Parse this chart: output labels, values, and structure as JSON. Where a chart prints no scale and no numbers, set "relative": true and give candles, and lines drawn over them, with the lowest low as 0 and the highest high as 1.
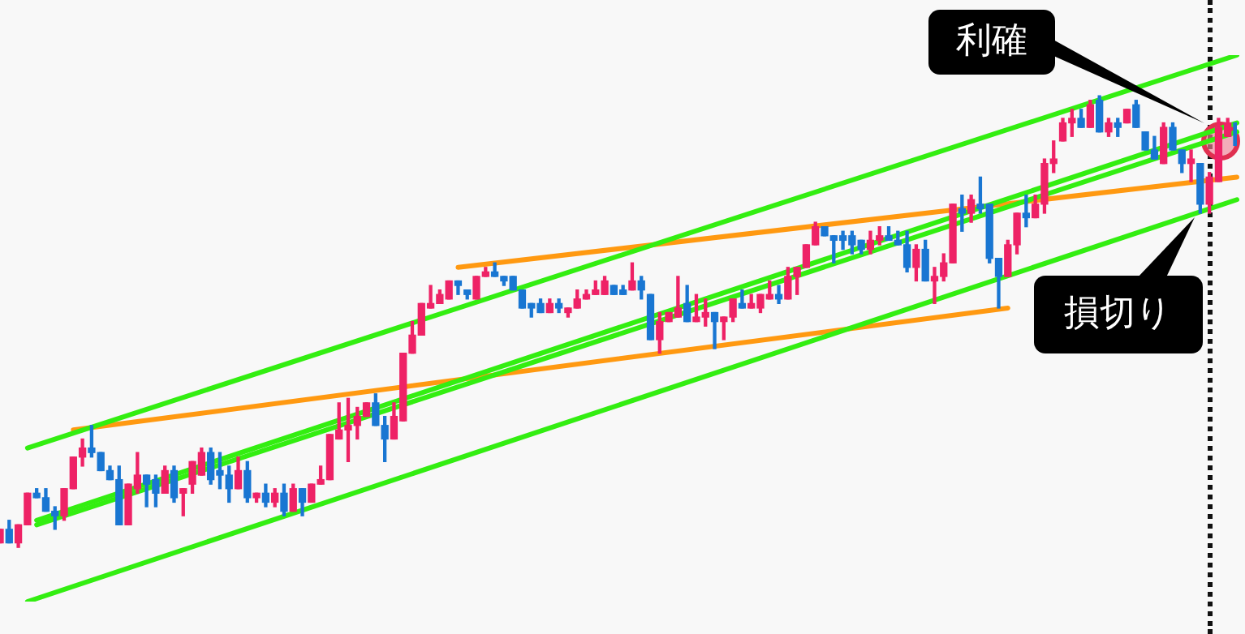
{
  "chart_data": {
    "type": "candlestick",
    "relative": true,
    "categories": [
      null,
      null,
      null,
      null,
      null,
      null,
      null,
      null,
      null,
      null,
      null,
      null,
      null,
      null,
      null,
      null,
      null,
      null,
      null,
      null,
      null,
      null,
      null,
      null,
      null,
      null,
      null,
      null,
      null,
      null,
      null,
      null,
      null,
      null,
      null,
      null,
      null,
      null,
      null,
      null,
      null,
      null,
      null,
      null,
      null,
      null,
      null,
      null,
      null,
      null,
      null,
      null,
      null,
      null,
      null,
      null,
      null,
      null,
      null,
      null,
      null,
      null,
      null,
      null,
      null,
      null,
      null,
      null,
      null,
      null,
      null,
      null,
      null,
      null,
      null,
      null,
      null,
      null,
      null,
      null,
      null,
      null,
      null,
      null,
      null,
      null,
      null,
      null,
      null,
      null,
      null,
      null,
      null,
      null,
      null,
      null,
      null,
      null,
      null,
      null,
      null,
      null,
      null,
      null,
      null,
      null,
      null,
      null,
      null,
      null,
      null,
      null,
      null,
      null,
      null,
      null,
      null,
      null,
      null,
      null,
      null,
      null,
      null,
      null,
      null,
      null,
      null,
      null,
      null,
      null,
      null,
      null,
      null,
      null,
      null,
      null
    ],
    "series": [
      {
        "type": "line",
        "color": "#33ee11",
        "values": [
          null,
          null,
          null,
          0.22,
          null,
          null,
          null,
          null,
          null,
          null,
          null,
          null,
          null,
          null,
          null,
          null,
          null,
          null,
          null,
          null,
          null,
          null,
          null,
          null,
          null,
          null,
          null,
          null,
          null,
          null,
          null,
          null,
          null,
          null,
          null,
          null,
          null,
          null,
          null,
          null,
          null,
          null,
          null,
          null,
          null,
          null,
          null,
          null,
          null,
          null,
          null,
          null,
          null,
          null,
          null,
          null,
          null,
          null,
          null,
          null,
          null,
          null,
          null,
          null,
          null,
          null,
          null,
          null,
          null,
          null,
          null,
          null,
          null,
          null,
          null,
          null,
          null,
          null,
          null,
          null,
          null,
          null,
          null,
          null,
          null,
          null,
          null,
          null,
          null,
          null,
          null,
          null,
          null,
          null,
          null,
          null,
          null,
          null,
          null,
          null,
          null,
          null,
          null,
          null,
          null,
          null,
          null,
          null,
          null,
          null,
          null,
          null,
          null,
          null,
          null,
          null,
          null,
          null,
          null,
          null,
          null,
          null,
          null,
          null,
          null,
          null,
          null,
          null,
          null,
          null,
          null,
          null,
          null,
          null,
          null,
          1.09
        ]
      },
      {
        "type": "line",
        "color": "#33ee11",
        "values": [
          null,
          null,
          null,
          null,
          0.06,
          null,
          null,
          null,
          null,
          null,
          null,
          null,
          null,
          null,
          null,
          null,
          null,
          null,
          null,
          null,
          null,
          null,
          null,
          null,
          null,
          null,
          null,
          null,
          null,
          null,
          null,
          null,
          null,
          null,
          null,
          null,
          null,
          null,
          null,
          null,
          null,
          null,
          null,
          null,
          null,
          null,
          null,
          null,
          null,
          null,
          null,
          null,
          null,
          null,
          null,
          null,
          null,
          null,
          null,
          null,
          null,
          null,
          null,
          null,
          null,
          null,
          null,
          null,
          null,
          null,
          null,
          null,
          null,
          null,
          null,
          null,
          null,
          null,
          null,
          null,
          null,
          null,
          null,
          null,
          null,
          null,
          null,
          null,
          null,
          null,
          null,
          null,
          null,
          null,
          null,
          null,
          null,
          null,
          null,
          null,
          null,
          null,
          null,
          null,
          null,
          null,
          null,
          null,
          null,
          null,
          null,
          null,
          null,
          null,
          null,
          null,
          null,
          null,
          null,
          null,
          null,
          null,
          null,
          null,
          null,
          null,
          null,
          null,
          null,
          null,
          null,
          null,
          null,
          null,
          null,
          0.94
        ]
      },
      {
        "type": "line",
        "color": "#33ee11",
        "values": [
          null,
          null,
          null,
          null,
          0.05,
          null,
          null,
          null,
          null,
          null,
          null,
          null,
          null,
          null,
          null,
          null,
          null,
          null,
          null,
          null,
          null,
          null,
          null,
          null,
          null,
          null,
          null,
          null,
          null,
          null,
          null,
          null,
          null,
          null,
          null,
          null,
          null,
          null,
          null,
          null,
          null,
          null,
          null,
          null,
          null,
          null,
          null,
          null,
          null,
          null,
          null,
          null,
          null,
          null,
          null,
          null,
          null,
          null,
          null,
          null,
          null,
          null,
          null,
          null,
          null,
          null,
          null,
          null,
          null,
          null,
          null,
          null,
          null,
          null,
          null,
          null,
          null,
          null,
          null,
          null,
          null,
          null,
          null,
          null,
          null,
          null,
          null,
          null,
          null,
          null,
          null,
          null,
          null,
          null,
          null,
          null,
          null,
          null,
          null,
          null,
          null,
          null,
          null,
          null,
          null,
          null,
          null,
          null,
          null,
          null,
          null,
          null,
          null,
          null,
          null,
          null,
          null,
          null,
          null,
          null,
          null,
          null,
          null,
          null,
          null,
          null,
          null,
          null,
          null,
          null,
          null,
          null,
          null,
          null,
          null,
          0.92
        ]
      },
      {
        "type": "line",
        "color": "#33ee11",
        "values": [
          null,
          null,
          null,
          -0.12,
          null,
          null,
          null,
          null,
          null,
          null,
          null,
          null,
          null,
          null,
          null,
          null,
          null,
          null,
          null,
          null,
          null,
          null,
          null,
          null,
          null,
          null,
          null,
          null,
          null,
          null,
          null,
          null,
          null,
          null,
          null,
          null,
          null,
          null,
          null,
          null,
          null,
          null,
          null,
          null,
          null,
          null,
          null,
          null,
          null,
          null,
          null,
          null,
          null,
          null,
          null,
          null,
          null,
          null,
          null,
          null,
          null,
          null,
          null,
          null,
          null,
          null,
          null,
          null,
          null,
          null,
          null,
          null,
          null,
          null,
          null,
          null,
          null,
          null,
          null,
          null,
          null,
          null,
          null,
          null,
          null,
          null,
          null,
          null,
          null,
          null,
          null,
          null,
          null,
          null,
          null,
          null,
          null,
          null,
          null,
          null,
          null,
          null,
          null,
          null,
          null,
          null,
          null,
          null,
          null,
          null,
          null,
          null,
          null,
          null,
          null,
          null,
          null,
          null,
          null,
          null,
          null,
          null,
          null,
          null,
          null,
          null,
          null,
          null,
          null,
          null,
          null,
          null,
          null,
          null,
          null,
          0.77
        ]
      },
      {
        "type": "line",
        "color": "#ff9911",
        "values": [
          null,
          null,
          null,
          null,
          null,
          null,
          null,
          null,
          0.26,
          null,
          null,
          null,
          null,
          null,
          null,
          null,
          null,
          null,
          null,
          null,
          null,
          null,
          null,
          null,
          null,
          null,
          null,
          null,
          null,
          null,
          null,
          null,
          null,
          null,
          null,
          null,
          null,
          null,
          null,
          null,
          null,
          null,
          null,
          null,
          null,
          null,
          null,
          null,
          null,
          null,
          null,
          null,
          null,
          null,
          null,
          null,
          null,
          null,
          null,
          null,
          null,
          null,
          null,
          null,
          null,
          null,
          null,
          null,
          null,
          null,
          null,
          null,
          null,
          null,
          null,
          null,
          null,
          null,
          null,
          null,
          null,
          null,
          null,
          null,
          null,
          null,
          null,
          null,
          null,
          null,
          null,
          null,
          null,
          null,
          null,
          null,
          null,
          null,
          null,
          null,
          null,
          null,
          null,
          null,
          null,
          null,
          null,
          null,
          null,
          null,
          0.53,
          null,
          null,
          null,
          null,
          null,
          null,
          null,
          null,
          null,
          null,
          null,
          null,
          null,
          null,
          null,
          null,
          null,
          null,
          null,
          null,
          null,
          null,
          null,
          null,
          null
        ]
      },
      {
        "type": "line",
        "color": "#ff9911",
        "values": [
          null,
          null,
          null,
          null,
          null,
          null,
          null,
          null,
          null,
          null,
          null,
          null,
          null,
          null,
          null,
          null,
          null,
          null,
          null,
          null,
          null,
          null,
          null,
          null,
          null,
          null,
          null,
          null,
          null,
          null,
          null,
          null,
          null,
          null,
          null,
          null,
          null,
          null,
          null,
          null,
          null,
          null,
          null,
          null,
          null,
          null,
          null,
          null,
          null,
          null,
          0.62,
          null,
          null,
          null,
          null,
          null,
          null,
          null,
          null,
          null,
          null,
          null,
          null,
          null,
          null,
          null,
          null,
          null,
          null,
          null,
          null,
          null,
          null,
          null,
          null,
          null,
          null,
          null,
          null,
          null,
          null,
          null,
          null,
          null,
          null,
          null,
          null,
          null,
          null,
          null,
          null,
          null,
          null,
          null,
          null,
          null,
          null,
          null,
          null,
          null,
          null,
          null,
          null,
          null,
          null,
          null,
          null,
          null,
          null,
          null,
          null,
          null,
          null,
          null,
          null,
          null,
          null,
          null,
          null,
          null,
          null,
          null,
          null,
          null,
          null,
          null,
          null,
          null,
          null,
          null,
          null,
          null,
          null,
          null,
          null,
          0.82
        ]
      },
      {
        "type": "candlestick",
        "ohlc": [
          [
            0.01,
            0.04,
            0.01,
            0.04
          ],
          [
            0.04,
            0.06,
            0.01,
            0.01
          ],
          [
            0.01,
            0.05,
            0,
            0.05
          ],
          [
            0.05,
            0.12,
            0.05,
            0.12
          ],
          [
            0.12,
            0.13,
            0.11,
            0.11
          ],
          [
            0.11,
            0.13,
            0.08,
            0.08
          ],
          [
            0.08,
            0.09,
            0.04,
            0.07
          ],
          [
            0.07,
            0.13,
            0.06,
            0.13
          ],
          [
            0.13,
            0.2,
            0.13,
            0.2
          ],
          [
            0.2,
            0.24,
            0.18,
            0.22
          ],
          [
            0.22,
            0.27,
            0.2,
            0.21
          ],
          [
            0.21,
            0.21,
            0.17,
            0.17
          ],
          [
            0.17,
            0.18,
            0.15,
            0.15
          ],
          [
            0.15,
            0.18,
            0.05,
            0.05
          ],
          [
            0.05,
            0.14,
            0.05,
            0.14
          ],
          [
            0.13,
            0.21,
            0.12,
            0.16
          ],
          [
            0.16,
            0.16,
            0.09,
            0.14
          ],
          [
            0.15,
            0.16,
            0.09,
            0.12
          ],
          [
            0.12,
            0.18,
            0.12,
            0.17
          ],
          [
            0.17,
            0.18,
            0.1,
            0.11
          ],
          [
            0.12,
            0.13,
            0.07,
            0.13
          ],
          [
            0.14,
            0.19,
            0.12,
            0.19
          ],
          [
            0.16,
            0.22,
            0.16,
            0.21
          ],
          [
            0.21,
            0.22,
            0.14,
            0.15
          ],
          [
            0.17,
            0.21,
            0.13,
            0.16
          ],
          [
            0.16,
            0.18,
            0.1,
            0.13
          ],
          [
            0.13,
            0.2,
            0.13,
            0.17
          ],
          [
            0.17,
            0.19,
            0.1,
            0.11
          ],
          [
            0.11,
            0.12,
            0.1,
            0.12
          ],
          [
            0.12,
            0.14,
            0.09,
            0.1
          ],
          [
            0.1,
            0.13,
            0.09,
            0.12
          ],
          [
            0.12,
            0.14,
            0.07,
            0.08
          ],
          [
            0.08,
            0.14,
            0.08,
            0.13
          ],
          [
            0.13,
            0.13,
            0.07,
            0.1
          ],
          [
            0.1,
            0.14,
            0.1,
            0.14
          ],
          [
            0.14,
            0.18,
            0.14,
            0.15
          ],
          [
            0.15,
            0.25,
            0.15,
            0.25
          ],
          [
            0.24,
            0.32,
            0.24,
            0.26
          ],
          [
            0.26,
            0.33,
            0.19,
            0.27
          ],
          [
            0.27,
            0.31,
            0.24,
            0.29
          ],
          [
            0.29,
            0.32,
            0.29,
            0.32
          ],
          [
            0.32,
            0.34,
            0.27,
            0.27
          ],
          [
            0.27,
            0.29,
            0.19,
            0.24
          ],
          [
            0.24,
            0.32,
            0.24,
            0.29
          ],
          [
            0.28,
            0.43,
            0.28,
            0.43
          ],
          [
            0.43,
            0.5,
            0.43,
            0.47
          ],
          [
            0.47,
            0.54,
            0.47,
            0.54
          ],
          [
            0.53,
            0.58,
            0.53,
            0.54
          ],
          [
            0.54,
            0.57,
            0.54,
            0.56
          ],
          [
            0.55,
            0.59,
            0.55,
            0.59
          ],
          [
            0.59,
            0.59,
            0.56,
            0.58
          ],
          [
            0.57,
            0.57,
            0.55,
            0.56
          ],
          [
            0.55,
            0.6,
            0.55,
            0.6
          ],
          [
            0.6,
            0.62,
            0.6,
            0.61
          ],
          [
            0.61,
            0.63,
            0.6,
            0.6
          ],
          [
            0.6,
            0.6,
            0.58,
            0.59
          ],
          [
            0.6,
            0.6,
            0.57,
            0.57
          ],
          [
            0.57,
            0.57,
            0.53,
            0.53
          ],
          [
            0.54,
            0.54,
            0.51,
            0.53
          ],
          [
            0.54,
            0.55,
            0.52,
            0.52
          ],
          [
            0.52,
            0.55,
            0.52,
            0.54
          ],
          [
            0.54,
            0.55,
            0.52,
            0.53
          ],
          [
            0.52,
            0.53,
            0.51,
            0.53
          ],
          [
            0.53,
            0.57,
            0.53,
            0.55
          ],
          [
            0.55,
            0.57,
            0.55,
            0.56
          ],
          [
            0.56,
            0.59,
            0.56,
            0.57
          ],
          [
            0.56,
            0.6,
            0.56,
            0.59
          ],
          [
            0.58,
            0.58,
            0.56,
            0.56
          ],
          [
            0.57,
            0.58,
            0.56,
            0.56
          ],
          [
            0.57,
            0.63,
            0.57,
            0.59
          ],
          [
            0.59,
            0.6,
            0.55,
            0.57
          ],
          [
            0.56,
            0.56,
            0.46,
            0.46
          ],
          [
            0.46,
            0.52,
            0.43,
            0.5
          ],
          [
            0.5,
            0.52,
            0.5,
            0.52
          ],
          [
            0.51,
            0.6,
            0.51,
            0.53
          ],
          [
            0.54,
            0.58,
            0.5,
            0.5
          ],
          [
            0.5,
            0.56,
            0.5,
            0.51
          ],
          [
            0.51,
            0.55,
            0.49,
            0.52
          ],
          [
            0.52,
            0.52,
            0.44,
            0.5
          ],
          [
            0.5,
            0.51,
            0.46,
            0.51
          ],
          [
            0.51,
            0.55,
            0.5,
            0.55
          ],
          [
            0.54,
            0.57,
            0.53,
            0.53
          ],
          [
            0.53,
            0.56,
            0.53,
            0.54
          ],
          [
            0.53,
            0.56,
            0.52,
            0.56
          ],
          [
            0.55,
            0.59,
            0.55,
            0.56
          ],
          [
            0.56,
            0.58,
            0.54,
            0.55
          ],
          [
            0.55,
            0.62,
            0.55,
            0.6
          ],
          [
            0.6,
            0.62,
            0.56,
            0.62
          ],
          [
            0.62,
            0.67,
            0.62,
            0.67
          ],
          [
            0.67,
            0.72,
            0.67,
            0.71
          ],
          [
            0.71,
            0.71,
            0.69,
            0.69
          ],
          [
            0.69,
            0.69,
            0.63,
            0.68
          ],
          [
            0.69,
            0.7,
            0.66,
            0.68
          ],
          [
            0.69,
            0.7,
            0.65,
            0.67
          ],
          [
            0.68,
            0.68,
            0.65,
            0.66
          ],
          [
            0.66,
            0.7,
            0.65,
            0.68
          ],
          [
            0.68,
            0.71,
            0.67,
            0.69
          ],
          [
            0.69,
            0.71,
            0.68,
            0.68
          ],
          [
            0.68,
            0.7,
            0.67,
            0.67
          ],
          [
            0.67,
            0.7,
            0.61,
            0.62
          ],
          [
            0.62,
            0.67,
            0.59,
            0.66
          ],
          [
            0.66,
            0.68,
            0.59,
            0.59
          ],
          [
            0.59,
            0.62,
            0.54,
            0.6
          ],
          [
            0.6,
            0.65,
            0.59,
            0.63
          ],
          [
            0.63,
            0.76,
            0.63,
            0.76
          ],
          [
            0.75,
            0.78,
            0.7,
            0.74
          ],
          [
            0.74,
            0.78,
            0.72,
            0.77
          ],
          [
            0.76,
            0.82,
            0.74,
            0.75
          ],
          [
            0.76,
            0.76,
            0.63,
            0.64
          ],
          [
            0.64,
            0.64,
            0.53,
            0.6
          ],
          [
            0.6,
            0.68,
            0.6,
            0.67
          ],
          [
            0.67,
            0.74,
            0.65,
            0.74
          ],
          [
            0.74,
            0.78,
            0.71,
            0.73
          ],
          [
            0.73,
            0.78,
            0.73,
            0.76
          ],
          [
            0.76,
            0.86,
            0.74,
            0.85
          ],
          [
            0.85,
            0.9,
            0.83,
            0.86
          ],
          [
            0.9,
            0.95,
            0.9,
            0.94
          ],
          [
            0.94,
            0.97,
            0.91,
            0.95
          ],
          [
            0.95,
            0.97,
            0.93,
            0.93
          ],
          [
            0.93,
            0.99,
            0.93,
            0.98
          ],
          [
            0.99,
            1,
            0.92,
            0.92
          ],
          [
            0.92,
            0.95,
            0.91,
            0.94
          ],
          [
            0.94,
            0.95,
            0.91,
            0.93
          ],
          [
            0.94,
            0.97,
            0.94,
            0.97
          ],
          [
            0.98,
            0.99,
            0.93,
            0.93
          ],
          [
            0.92,
            0.92,
            0.88,
            0.88
          ],
          [
            0.88,
            0.91,
            0.86,
            0.86
          ],
          [
            0.85,
            0.94,
            0.85,
            0.93
          ],
          [
            0.93,
            0.94,
            0.88,
            0.88
          ],
          [
            0.88,
            0.88,
            0.83,
            0.85
          ],
          [
            0.85,
            0.88,
            0.81,
            0.86
          ],
          [
            0.85,
            0.85,
            0.74,
            0.76
          ],
          [
            0.76,
            0.83,
            0.74,
            0.82
          ],
          [
            0.81,
            0.95,
            0.81,
            0.93
          ],
          [
            0.91,
            0.95,
            0.91,
            0.94
          ],
          [
            0.94,
            0.94,
            0.89,
            0.89
          ]
        ],
        "colors": [
          "#ee2266",
          "#1976d2",
          "#ee2266",
          "#ee2266",
          "#1976d2",
          "#1976d2",
          "#1976d2",
          "#ee2266",
          "#ee2266",
          "#ee2266",
          "#1976d2",
          "#1976d2",
          "#1976d2",
          "#1976d2",
          "#ee2266",
          "#ee2266",
          "#1976d2",
          "#1976d2",
          "#ee2266",
          "#1976d2",
          "#ee2266",
          "#ee2266",
          "#ee2266",
          "#1976d2",
          "#1976d2",
          "#1976d2",
          "#ee2266",
          "#1976d2",
          "#ee2266",
          "#1976d2",
          "#ee2266",
          "#1976d2",
          "#ee2266",
          "#1976d2",
          "#ee2266",
          "#ee2266",
          "#ee2266",
          "#ee2266",
          "#ee2266",
          "#ee2266",
          "#ee2266",
          "#1976d2",
          "#1976d2",
          "#ee2266",
          "#ee2266",
          "#ee2266",
          "#ee2266",
          "#ee2266",
          "#ee2266",
          "#ee2266",
          "#1976d2",
          "#1976d2",
          "#ee2266",
          "#ee2266",
          "#1976d2",
          "#1976d2",
          "#1976d2",
          "#1976d2",
          "#1976d2",
          "#1976d2",
          "#ee2266",
          "#1976d2",
          "#ee2266",
          "#ee2266",
          "#ee2266",
          "#ee2266",
          "#ee2266",
          "#1976d2",
          "#1976d2",
          "#ee2266",
          "#1976d2",
          "#1976d2",
          "#ee2266",
          "#ee2266",
          "#ee2266",
          "#1976d2",
          "#ee2266",
          "#ee2266",
          "#1976d2",
          "#ee2266",
          "#ee2266",
          "#1976d2",
          "#ee2266",
          "#ee2266",
          "#ee2266",
          "#1976d2",
          "#ee2266",
          "#ee2266",
          "#ee2266",
          "#ee2266",
          "#1976d2",
          "#1976d2",
          "#1976d2",
          "#1976d2",
          "#1976d2",
          "#ee2266",
          "#ee2266",
          "#1976d2",
          "#1976d2",
          "#1976d2",
          "#ee2266",
          "#1976d2",
          "#ee2266",
          "#ee2266",
          "#ee2266",
          "#1976d2",
          "#ee2266",
          "#1976d2",
          "#1976d2",
          "#1976d2",
          "#ee2266",
          "#ee2266",
          "#1976d2",
          "#ee2266",
          "#ee2266",
          "#ee2266",
          "#ee2266",
          "#ee2266",
          "#1976d2",
          "#ee2266",
          "#1976d2",
          "#ee2266",
          "#1976d2",
          "#ee2266",
          "#1976d2",
          "#1976d2",
          "#1976d2",
          "#ee2266",
          "#1976d2",
          "#1976d2",
          "#ee2266",
          "#1976d2",
          "#ee2266",
          "#ee2266",
          "#ee2266",
          "#1976d2"
        ]
      }
    ],
    "annotations": [
      "利確",
      "損切り"
    ]
  }
}
